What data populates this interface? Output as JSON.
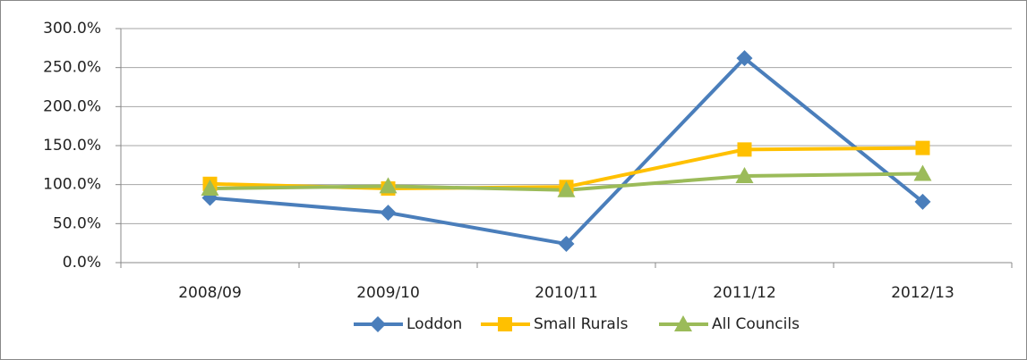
{
  "chart_data": {
    "type": "line",
    "categories": [
      "2008/09",
      "2009/10",
      "2010/11",
      "2011/12",
      "2012/13"
    ],
    "series": [
      {
        "name": "Loddon",
        "color": "#4a7ebb",
        "marker": "diamond",
        "values": [
          83,
          64,
          24,
          262,
          78
        ]
      },
      {
        "name": "Small Rurals",
        "color": "#ffc000",
        "marker": "square",
        "values": [
          101,
          95,
          97,
          145,
          147
        ]
      },
      {
        "name": "All Councils",
        "color": "#9bbb59",
        "marker": "triangle",
        "values": [
          95,
          98,
          93,
          111,
          114
        ]
      }
    ],
    "ylim": [
      0,
      300
    ],
    "yticks": [
      {
        "value": 0,
        "label": "0.0%"
      },
      {
        "value": 50,
        "label": "50.0%"
      },
      {
        "value": 100,
        "label": "100.0%"
      },
      {
        "value": 150,
        "label": "150.0%"
      },
      {
        "value": 200,
        "label": "200.0%"
      },
      {
        "value": 250,
        "label": "250.0%"
      },
      {
        "value": 300,
        "label": "300.0%"
      }
    ],
    "grid": true,
    "legend": "bottom"
  }
}
